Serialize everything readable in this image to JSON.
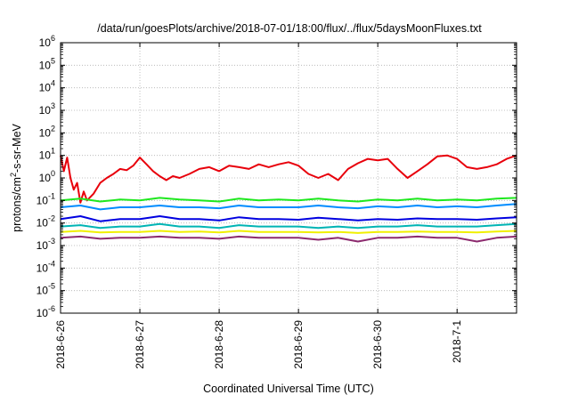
{
  "chart_data": {
    "type": "line",
    "title": "/data/run/goesPlots/archive/2018-07-01/18:00/flux/../flux/5daysMoonFluxes.txt",
    "xlabel": "Coordinated Universal Time (UTC)",
    "ylabel": {
      "prefix": "protons/cm",
      "superscript": "2",
      "suffix": "-s-sr-MeV"
    },
    "yscale": "log",
    "ylim": [
      1e-06,
      1000000.0
    ],
    "xlim": [
      "2018-06-26 00:00",
      "2018-07-01 18:00"
    ],
    "grid": true,
    "x_ticks": [
      {
        "date": "2018-06-26 00:00",
        "label": "2018-6-26"
      },
      {
        "date": "2018-06-27 00:00",
        "label": "2018-6-27"
      },
      {
        "date": "2018-06-28 00:00",
        "label": "2018-6-28"
      },
      {
        "date": "2018-06-29 00:00",
        "label": "2018-6-29"
      },
      {
        "date": "2018-06-30 00:00",
        "label": "2018-6-30"
      },
      {
        "date": "2018-07-01 00:00",
        "label": "2018-7-1"
      }
    ],
    "y_ticks": [
      {
        "value": 1e-06,
        "base": "10",
        "exponent": "-6"
      },
      {
        "value": 1e-05,
        "base": "10",
        "exponent": "-5"
      },
      {
        "value": 0.0001,
        "base": "10",
        "exponent": "-4"
      },
      {
        "value": 0.001,
        "base": "10",
        "exponent": "-3"
      },
      {
        "value": 0.01,
        "base": "10",
        "exponent": "-2"
      },
      {
        "value": 0.1,
        "base": "10",
        "exponent": "-1"
      },
      {
        "value": 1,
        "base": "10",
        "exponent": "0"
      },
      {
        "value": 10,
        "base": "10",
        "exponent": "1"
      },
      {
        "value": 100,
        "base": "10",
        "exponent": "2"
      },
      {
        "value": 1000,
        "base": "10",
        "exponent": "3"
      },
      {
        "value": 10000,
        "base": "10",
        "exponent": "4"
      },
      {
        "value": 100000,
        "base": "10",
        "exponent": "5"
      },
      {
        "value": 1000000,
        "base": "10",
        "exponent": "6"
      }
    ],
    "series": [
      {
        "color": "#e8000b",
        "x": [
          "2018-06-26 00:00",
          "2018-06-26 01:00",
          "2018-06-26 02:00",
          "2018-06-26 03:00",
          "2018-06-26 04:00",
          "2018-06-26 05:00",
          "2018-06-26 06:00",
          "2018-06-26 07:00",
          "2018-06-26 08:00",
          "2018-06-26 10:00",
          "2018-06-26 12:00",
          "2018-06-26 14:00",
          "2018-06-26 16:00",
          "2018-06-26 18:00",
          "2018-06-26 20:00",
          "2018-06-26 22:00",
          "2018-06-27 00:00",
          "2018-06-27 02:00",
          "2018-06-27 04:00",
          "2018-06-27 06:00",
          "2018-06-27 08:00",
          "2018-06-27 10:00",
          "2018-06-27 12:00",
          "2018-06-27 15:00",
          "2018-06-27 18:00",
          "2018-06-27 21:00",
          "2018-06-28 00:00",
          "2018-06-28 03:00",
          "2018-06-28 06:00",
          "2018-06-28 09:00",
          "2018-06-28 12:00",
          "2018-06-28 15:00",
          "2018-06-28 18:00",
          "2018-06-28 21:00",
          "2018-06-29 00:00",
          "2018-06-29 03:00",
          "2018-06-29 06:00",
          "2018-06-29 09:00",
          "2018-06-29 12:00",
          "2018-06-29 15:00",
          "2018-06-29 18:00",
          "2018-06-29 21:00",
          "2018-06-30 00:00",
          "2018-06-30 03:00",
          "2018-06-30 06:00",
          "2018-06-30 09:00",
          "2018-06-30 12:00",
          "2018-06-30 15:00",
          "2018-06-30 18:00",
          "2018-06-30 21:00",
          "2018-07-01 00:00",
          "2018-07-01 03:00",
          "2018-07-01 06:00",
          "2018-07-01 09:00",
          "2018-07-01 12:00",
          "2018-07-01 15:00",
          "2018-07-01 18:00"
        ],
        "y": [
          10,
          2,
          8,
          1,
          0.3,
          0.6,
          0.08,
          0.25,
          0.1,
          0.2,
          0.6,
          1.0,
          1.5,
          2.5,
          2.2,
          3.5,
          8,
          4,
          2,
          1.2,
          0.8,
          1.2,
          1.0,
          1.5,
          2.5,
          3.0,
          2.0,
          3.5,
          3.0,
          2.5,
          4.0,
          3.0,
          4.0,
          5.0,
          3.5,
          1.5,
          1.0,
          1.5,
          0.8,
          2.5,
          4.5,
          7.0,
          6.0,
          7.0,
          2.5,
          1.0,
          2.0,
          4.0,
          9.0,
          10.0,
          7.0,
          3.0,
          2.5,
          3.0,
          4.0,
          7.0,
          10.0
        ]
      },
      {
        "color": "#1ee81e",
        "x": [
          "2018-06-26 00:00",
          "2018-06-26 06:00",
          "2018-06-26 12:00",
          "2018-06-26 18:00",
          "2018-06-27 00:00",
          "2018-06-27 06:00",
          "2018-06-27 12:00",
          "2018-06-27 18:00",
          "2018-06-28 00:00",
          "2018-06-28 06:00",
          "2018-06-28 12:00",
          "2018-06-28 18:00",
          "2018-06-29 00:00",
          "2018-06-29 06:00",
          "2018-06-29 12:00",
          "2018-06-29 18:00",
          "2018-06-30 00:00",
          "2018-06-30 06:00",
          "2018-06-30 12:00",
          "2018-06-30 18:00",
          "2018-07-01 00:00",
          "2018-07-01 06:00",
          "2018-07-01 12:00",
          "2018-07-01 18:00"
        ],
        "y": [
          0.1,
          0.12,
          0.09,
          0.11,
          0.1,
          0.13,
          0.11,
          0.1,
          0.09,
          0.12,
          0.1,
          0.11,
          0.1,
          0.12,
          0.1,
          0.09,
          0.11,
          0.1,
          0.12,
          0.1,
          0.11,
          0.1,
          0.12,
          0.13
        ]
      },
      {
        "color": "#008cff",
        "x": [
          "2018-06-26 00:00",
          "2018-06-26 06:00",
          "2018-06-26 12:00",
          "2018-06-26 18:00",
          "2018-06-27 00:00",
          "2018-06-27 06:00",
          "2018-06-27 12:00",
          "2018-06-27 18:00",
          "2018-06-28 00:00",
          "2018-06-28 06:00",
          "2018-06-28 12:00",
          "2018-06-28 18:00",
          "2018-06-29 00:00",
          "2018-06-29 06:00",
          "2018-06-29 12:00",
          "2018-06-29 18:00",
          "2018-06-30 00:00",
          "2018-06-30 06:00",
          "2018-06-30 12:00",
          "2018-06-30 18:00",
          "2018-07-01 00:00",
          "2018-07-01 06:00",
          "2018-07-01 12:00",
          "2018-07-01 18:00"
        ],
        "y": [
          0.05,
          0.06,
          0.04,
          0.05,
          0.05,
          0.06,
          0.05,
          0.05,
          0.045,
          0.06,
          0.05,
          0.05,
          0.05,
          0.06,
          0.05,
          0.045,
          0.055,
          0.05,
          0.06,
          0.05,
          0.055,
          0.05,
          0.06,
          0.07
        ]
      },
      {
        "color": "#00b4b4",
        "x": [
          "2018-06-26 00:00",
          "2018-06-26 06:00",
          "2018-06-26 12:00",
          "2018-06-26 18:00",
          "2018-06-27 00:00",
          "2018-06-27 06:00",
          "2018-06-27 12:00",
          "2018-06-27 18:00",
          "2018-06-28 00:00",
          "2018-06-28 06:00",
          "2018-06-28 12:00",
          "2018-06-28 18:00",
          "2018-06-29 00:00",
          "2018-06-29 06:00",
          "2018-06-29 12:00",
          "2018-06-29 18:00",
          "2018-06-30 00:00",
          "2018-06-30 06:00",
          "2018-06-30 12:00",
          "2018-06-30 18:00",
          "2018-07-01 00:00",
          "2018-07-01 06:00",
          "2018-07-01 12:00",
          "2018-07-01 18:00"
        ],
        "y": [
          0.007,
          0.008,
          0.006,
          0.007,
          0.007,
          0.009,
          0.007,
          0.007,
          0.006,
          0.008,
          0.007,
          0.007,
          0.007,
          0.006,
          0.007,
          0.006,
          0.007,
          0.007,
          0.008,
          0.007,
          0.007,
          0.007,
          0.008,
          0.009
        ]
      },
      {
        "color": "#0000e0",
        "x": [
          "2018-06-26 00:00",
          "2018-06-26 06:00",
          "2018-06-26 12:00",
          "2018-06-26 18:00",
          "2018-06-27 00:00",
          "2018-06-27 06:00",
          "2018-06-27 12:00",
          "2018-06-27 18:00",
          "2018-06-28 00:00",
          "2018-06-28 06:00",
          "2018-06-28 12:00",
          "2018-06-28 18:00",
          "2018-06-29 00:00",
          "2018-06-29 06:00",
          "2018-06-29 12:00",
          "2018-06-29 18:00",
          "2018-06-30 00:00",
          "2018-06-30 06:00",
          "2018-06-30 12:00",
          "2018-06-30 18:00",
          "2018-07-01 00:00",
          "2018-07-01 06:00",
          "2018-07-01 12:00",
          "2018-07-01 18:00"
        ],
        "y": [
          0.015,
          0.02,
          0.012,
          0.015,
          0.015,
          0.02,
          0.015,
          0.015,
          0.013,
          0.018,
          0.015,
          0.015,
          0.014,
          0.017,
          0.015,
          0.013,
          0.015,
          0.014,
          0.016,
          0.015,
          0.015,
          0.014,
          0.016,
          0.018
        ]
      },
      {
        "color": "#f0f000",
        "x": [
          "2018-06-26 00:00",
          "2018-06-26 06:00",
          "2018-06-26 12:00",
          "2018-06-26 18:00",
          "2018-06-27 00:00",
          "2018-06-27 06:00",
          "2018-06-27 12:00",
          "2018-06-27 18:00",
          "2018-06-28 00:00",
          "2018-06-28 06:00",
          "2018-06-28 12:00",
          "2018-06-28 18:00",
          "2018-06-29 00:00",
          "2018-06-29 06:00",
          "2018-06-29 12:00",
          "2018-06-29 18:00",
          "2018-06-30 00:00",
          "2018-06-30 06:00",
          "2018-06-30 12:00",
          "2018-06-30 18:00",
          "2018-07-01 00:00",
          "2018-07-01 06:00",
          "2018-07-01 12:00",
          "2018-07-01 18:00"
        ],
        "y": [
          0.004,
          0.0045,
          0.0038,
          0.004,
          0.004,
          0.0045,
          0.004,
          0.0042,
          0.0038,
          0.0045,
          0.004,
          0.004,
          0.004,
          0.0038,
          0.004,
          0.0036,
          0.004,
          0.004,
          0.0042,
          0.004,
          0.004,
          0.0038,
          0.0042,
          0.0045
        ]
      },
      {
        "color": "#8c2a6e",
        "x": [
          "2018-06-26 00:00",
          "2018-06-26 06:00",
          "2018-06-26 12:00",
          "2018-06-26 18:00",
          "2018-06-27 00:00",
          "2018-06-27 06:00",
          "2018-06-27 12:00",
          "2018-06-27 18:00",
          "2018-06-28 00:00",
          "2018-06-28 06:00",
          "2018-06-28 12:00",
          "2018-06-28 18:00",
          "2018-06-29 00:00",
          "2018-06-29 06:00",
          "2018-06-29 12:00",
          "2018-06-29 18:00",
          "2018-06-30 00:00",
          "2018-06-30 06:00",
          "2018-06-30 12:00",
          "2018-06-30 18:00",
          "2018-07-01 00:00",
          "2018-07-01 06:00",
          "2018-07-01 12:00",
          "2018-07-01 18:00"
        ],
        "y": [
          0.0022,
          0.0025,
          0.002,
          0.0022,
          0.0022,
          0.0025,
          0.0022,
          0.0022,
          0.002,
          0.0025,
          0.0022,
          0.0022,
          0.0022,
          0.0018,
          0.0022,
          0.0015,
          0.0022,
          0.0022,
          0.0025,
          0.0022,
          0.0022,
          0.0015,
          0.0022,
          0.0025
        ]
      }
    ]
  }
}
